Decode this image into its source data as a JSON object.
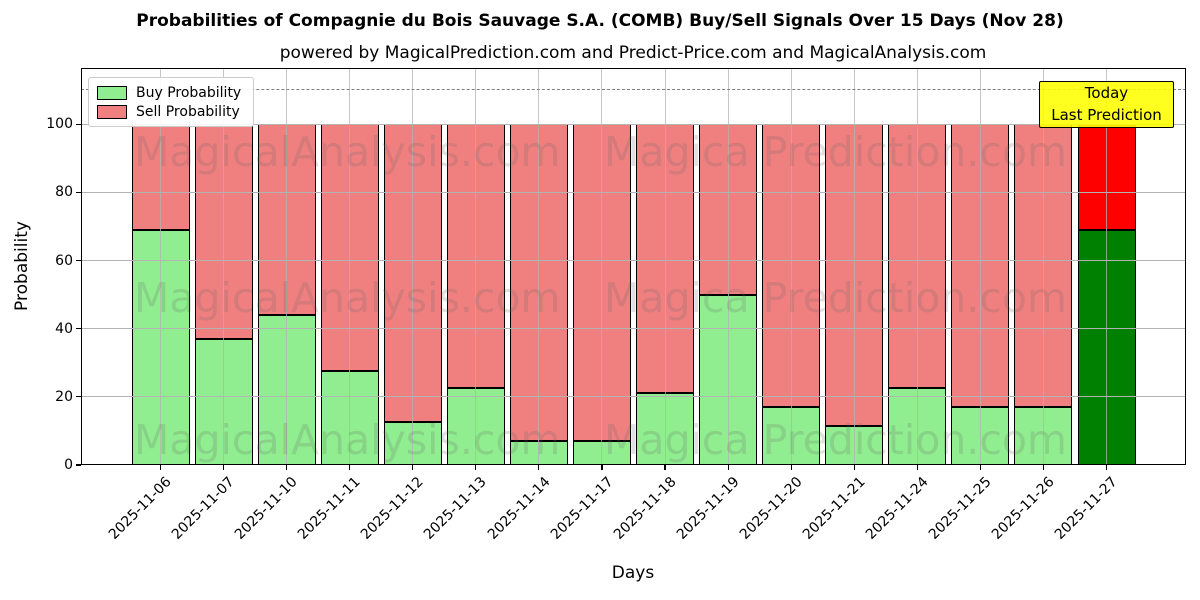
{
  "title": "Probabilities of Compagnie du Bois Sauvage S.A. (COMB) Buy/Sell Signals Over 15 Days (Nov 28)",
  "subtitle": "powered by MagicalPrediction.com and Predict-Price.com and MagicalAnalysis.com",
  "legend": {
    "buy_label": "Buy Probability",
    "sell_label": "Sell Probability"
  },
  "annotation_box": {
    "line1": "Today",
    "line2": "Last Prediction",
    "bg_color": "#ffff00"
  },
  "watermark": {
    "left_text": "MagicalAnalysis.com",
    "right_text": "Magica Prediction.com"
  },
  "colors": {
    "buy": "#90ee90",
    "sell": "#f08080",
    "today_buy": "#008000",
    "today_sell": "#ff0000",
    "bar_edge": "#000000",
    "grid": "#b3b3b3",
    "dashed_line": "#808080"
  },
  "chart_data": {
    "type": "bar",
    "stacked": true,
    "title": "Probabilities of Compagnie du Bois Sauvage S.A. (COMB) Buy/Sell Signals Over 15 Days (Nov 28)",
    "xlabel": "Days",
    "ylabel": "Probability",
    "categories": [
      "2025-11-06",
      "2025-11-07",
      "2025-11-10",
      "2025-11-11",
      "2025-11-12",
      "2025-11-13",
      "2025-11-14",
      "2025-11-17",
      "2025-11-18",
      "2025-11-19",
      "2025-11-20",
      "2025-11-21",
      "2025-11-24",
      "2025-11-25",
      "2025-11-26",
      "2025-11-27"
    ],
    "series": [
      {
        "name": "Buy Probability",
        "color": "#90ee90",
        "values": [
          69,
          37,
          44,
          27.5,
          12.5,
          22.5,
          7,
          7,
          21,
          50,
          17,
          11.5,
          22.5,
          17,
          17,
          69
        ]
      },
      {
        "name": "Sell Probability",
        "color": "#f08080",
        "values": [
          31,
          63,
          56,
          72.5,
          87.5,
          77.5,
          93,
          93,
          79,
          50,
          83,
          88.5,
          77.5,
          83,
          83,
          31
        ]
      }
    ],
    "today_index": 15,
    "yticks": [
      0,
      20,
      40,
      60,
      80,
      100
    ],
    "ylim": [
      0,
      116.5
    ],
    "dashed_line_y": 110,
    "legend_position": "upper left",
    "grid": true
  }
}
